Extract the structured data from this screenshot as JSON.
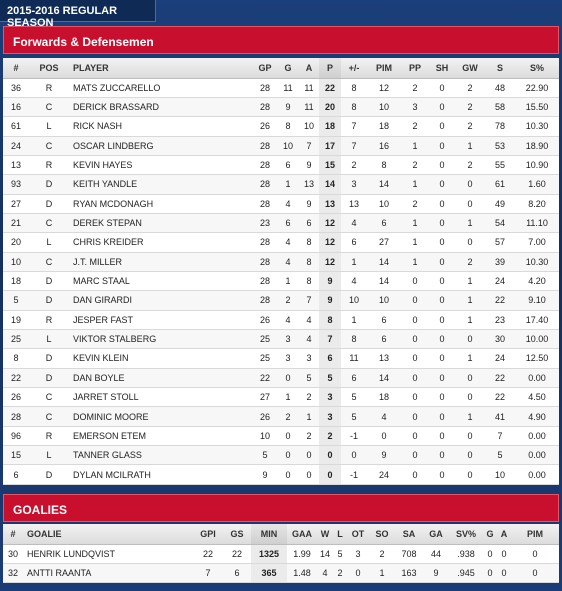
{
  "tab": {
    "label": "2015-2016 REGULAR SEASON"
  },
  "skaters": {
    "title": "Forwards & Defensemen",
    "columns": [
      "#",
      "POS",
      "PLAYER",
      "GP",
      "G",
      "A",
      "P",
      "+/-",
      "PIM",
      "PP",
      "SH",
      "GW",
      "S",
      "S%"
    ],
    "rows": [
      [
        "36",
        "R",
        "MATS ZUCCARELLO",
        "28",
        "11",
        "11",
        "22",
        "8",
        "12",
        "2",
        "0",
        "2",
        "48",
        "22.90"
      ],
      [
        "16",
        "C",
        "DERICK BRASSARD",
        "28",
        "9",
        "11",
        "20",
        "8",
        "10",
        "3",
        "0",
        "2",
        "58",
        "15.50"
      ],
      [
        "61",
        "L",
        "RICK NASH",
        "26",
        "8",
        "10",
        "18",
        "7",
        "18",
        "2",
        "0",
        "2",
        "78",
        "10.30"
      ],
      [
        "24",
        "C",
        "OSCAR LINDBERG",
        "28",
        "10",
        "7",
        "17",
        "7",
        "16",
        "1",
        "0",
        "1",
        "53",
        "18.90"
      ],
      [
        "13",
        "R",
        "KEVIN HAYES",
        "28",
        "6",
        "9",
        "15",
        "2",
        "8",
        "2",
        "0",
        "2",
        "55",
        "10.90"
      ],
      [
        "93",
        "D",
        "KEITH YANDLE",
        "28",
        "1",
        "13",
        "14",
        "3",
        "14",
        "1",
        "0",
        "0",
        "61",
        "1.60"
      ],
      [
        "27",
        "D",
        "RYAN MCDONAGH",
        "28",
        "4",
        "9",
        "13",
        "13",
        "10",
        "2",
        "0",
        "0",
        "49",
        "8.20"
      ],
      [
        "21",
        "C",
        "DEREK STEPAN",
        "23",
        "6",
        "6",
        "12",
        "4",
        "6",
        "1",
        "0",
        "1",
        "54",
        "11.10"
      ],
      [
        "20",
        "L",
        "CHRIS KREIDER",
        "28",
        "4",
        "8",
        "12",
        "6",
        "27",
        "1",
        "0",
        "0",
        "57",
        "7.00"
      ],
      [
        "10",
        "C",
        "J.T. MILLER",
        "28",
        "4",
        "8",
        "12",
        "1",
        "14",
        "1",
        "0",
        "2",
        "39",
        "10.30"
      ],
      [
        "18",
        "D",
        "MARC STAAL",
        "28",
        "1",
        "8",
        "9",
        "4",
        "14",
        "0",
        "0",
        "1",
        "24",
        "4.20"
      ],
      [
        "5",
        "D",
        "DAN GIRARDI",
        "28",
        "2",
        "7",
        "9",
        "10",
        "10",
        "0",
        "0",
        "1",
        "22",
        "9.10"
      ],
      [
        "19",
        "R",
        "JESPER FAST",
        "26",
        "4",
        "4",
        "8",
        "1",
        "6",
        "0",
        "0",
        "1",
        "23",
        "17.40"
      ],
      [
        "25",
        "L",
        "VIKTOR STALBERG",
        "25",
        "3",
        "4",
        "7",
        "8",
        "6",
        "0",
        "0",
        "0",
        "30",
        "10.00"
      ],
      [
        "8",
        "D",
        "KEVIN KLEIN",
        "25",
        "3",
        "3",
        "6",
        "11",
        "13",
        "0",
        "0",
        "1",
        "24",
        "12.50"
      ],
      [
        "22",
        "D",
        "DAN BOYLE",
        "22",
        "0",
        "5",
        "5",
        "6",
        "14",
        "0",
        "0",
        "0",
        "22",
        "0.00"
      ],
      [
        "26",
        "C",
        "JARRET STOLL",
        "27",
        "1",
        "2",
        "3",
        "5",
        "18",
        "0",
        "0",
        "0",
        "22",
        "4.50"
      ],
      [
        "28",
        "C",
        "DOMINIC MOORE",
        "26",
        "2",
        "1",
        "3",
        "5",
        "4",
        "0",
        "0",
        "1",
        "41",
        "4.90"
      ],
      [
        "96",
        "R",
        "EMERSON ETEM",
        "10",
        "0",
        "2",
        "2",
        "-1",
        "0",
        "0",
        "0",
        "0",
        "7",
        "0.00"
      ],
      [
        "15",
        "L",
        "TANNER GLASS",
        "5",
        "0",
        "0",
        "0",
        "0",
        "9",
        "0",
        "0",
        "0",
        "5",
        "0.00"
      ],
      [
        "6",
        "D",
        "DYLAN MCILRATH",
        "9",
        "0",
        "0",
        "0",
        "-1",
        "24",
        "0",
        "0",
        "0",
        "10",
        "0.00"
      ]
    ]
  },
  "goalies": {
    "title": "GOALIES",
    "columns": [
      "#",
      "GOALIE",
      "GPI",
      "GS",
      "MIN",
      "GAA",
      "W",
      "L",
      "OT",
      "SO",
      "SA",
      "GA",
      "SV%",
      "G",
      "A",
      "PIM"
    ],
    "rows": [
      [
        "30",
        "HENRIK LUNDQVIST",
        "22",
        "22",
        "1325",
        "1.99",
        "14",
        "5",
        "3",
        "2",
        "708",
        "44",
        ".938",
        "0",
        "0",
        "0"
      ],
      [
        "32",
        "ANTTI RAANTA",
        "7",
        "6",
        "365",
        "1.48",
        "4",
        "2",
        "0",
        "1",
        "163",
        "9",
        ".945",
        "0",
        "0",
        "0"
      ]
    ]
  }
}
